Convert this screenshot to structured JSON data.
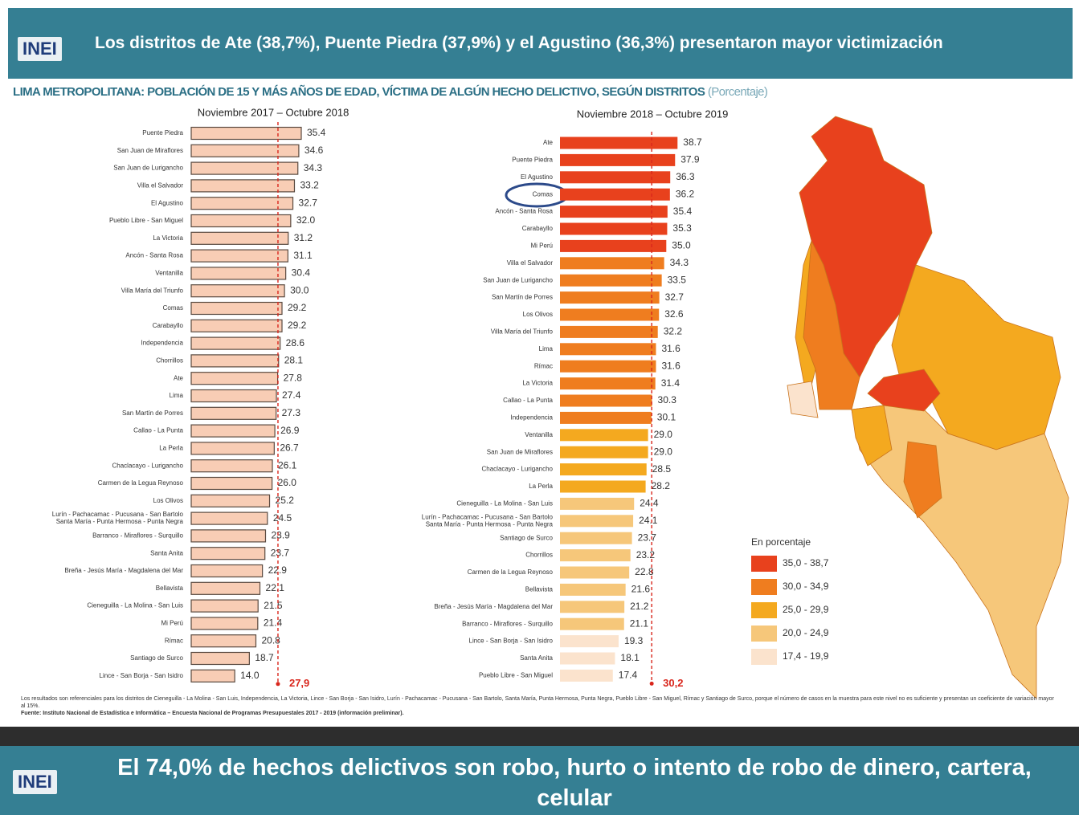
{
  "logo": "INEI",
  "header": {
    "title": "Los distritos de Ate (38,7%), Puente Piedra (37,9%) y el Agustino (36,3%) presentaron mayor victimización"
  },
  "subtitle": {
    "text": "LIMA METROPOLITANA: POBLACIÓN DE 15 Y MÁS AÑOS DE EDAD, VÍCTIMA DE ALGÚN HECHO DELICTIVO, SEGÚN DISTRITOS",
    "unit": "(Porcentaje)"
  },
  "chart_data": [
    {
      "type": "bar",
      "orientation": "horizontal",
      "title": "Noviembre 2017 – Octubre 2018",
      "categories": [
        "Puente Piedra",
        "San Juan de Miraflores",
        "San Juan de Lurigancho",
        "Villa el Salvador",
        "El Agustino",
        "Pueblo Libre - San Miguel",
        "La Victoria",
        "Ancón - Santa Rosa",
        "Ventanilla",
        "Villa María del Triunfo",
        "Comas",
        "Carabayllo",
        "Independencia",
        "Chorrillos",
        "Ate",
        "Lima",
        "San Martín de Porres",
        "Callao - La Punta",
        "La Perla",
        "Chaclacayo - Lurigancho",
        "Carmen de la Legua Reynoso",
        "Los Olivos",
        "Lurín - Pachacamac - Pucusana - San Bartolo\nSanta María - Punta Hermosa - Punta Negra",
        "Barranco - Miraflores - Surquillo",
        "Santa Anita",
        "Breña - Jesús María - Magdalena del Mar",
        "Bellavista",
        "Cieneguilla - La Molina - San Luis",
        "Mi Perú",
        "Rímac",
        "Santiago de Surco",
        "Lince - San Borja - San Isidro"
      ],
      "values": [
        35.4,
        34.6,
        34.3,
        33.2,
        32.7,
        32.0,
        31.2,
        31.1,
        30.4,
        30.0,
        29.2,
        29.2,
        28.6,
        28.1,
        27.8,
        27.4,
        27.3,
        26.9,
        26.7,
        26.1,
        26.0,
        25.2,
        24.5,
        23.9,
        23.7,
        22.9,
        22.1,
        21.5,
        21.4,
        20.8,
        18.7,
        14.0
      ],
      "value_labels": [
        "35.4",
        "34.6",
        "34.3",
        "33.2",
        "32.7",
        "32.0",
        "31.2",
        "31.1",
        "30.4",
        "30.0",
        "29.2",
        "29.2",
        "28.6",
        "28.1",
        "27.8",
        "27.4",
        "27.3",
        "26.9",
        "26.7",
        "26.1",
        "26.0",
        "25.2",
        "24.5",
        "23.9",
        "23.7",
        "22.9",
        "22.1",
        "21.5",
        "21.4",
        "20.8",
        "18.7",
        "14.0"
      ],
      "color": "#f8cdb5",
      "bar_outline": "#5a4a40",
      "average": {
        "value": 27.9,
        "label": "27,9"
      },
      "average_color": "#d9261c"
    },
    {
      "type": "bar",
      "orientation": "horizontal",
      "title": "Noviembre 2018 – Octubre 2019",
      "categories": [
        "Ate",
        "Puente Piedra",
        "El Agustino",
        "Comas",
        "Ancón - Santa Rosa",
        "Carabayllo",
        "Mi Perú",
        "Villa el Salvador",
        "San Juan de Lurigancho",
        "San Martín de Porres",
        "Los Olivos",
        "Villa María del Triunfo",
        "Lima",
        "Rímac",
        "La Victoria",
        "Callao - La Punta",
        "Independencia",
        "Ventanilla",
        "San Juan de Miraflores",
        "Chaclacayo - Lurigancho",
        "La Perla",
        "Cieneguilla - La Molina - San Luis",
        "Lurín - Pachacamac - Pucusana - San Bartolo\nSanta María - Punta Hermosa - Punta Negra",
        "Santiago de Surco",
        "Chorrillos",
        "Carmen de la Legua Reynoso",
        "Bellavista",
        "Breña - Jesús María - Magdalena del Mar",
        "Barranco - Miraflores - Surquillo",
        "Lince - San Borja - San Isidro",
        "Santa Anita",
        "Pueblo Libre - San Miguel"
      ],
      "values": [
        38.7,
        37.9,
        36.3,
        36.2,
        35.4,
        35.3,
        35.0,
        34.3,
        33.5,
        32.7,
        32.6,
        32.2,
        31.6,
        31.6,
        31.4,
        30.3,
        30.1,
        29.0,
        29.0,
        28.5,
        28.2,
        24.4,
        24.1,
        23.7,
        23.2,
        22.8,
        21.6,
        21.2,
        21.1,
        19.3,
        18.1,
        17.4
      ],
      "value_labels": [
        "38.7",
        "37.9",
        "36.3",
        "36.2",
        "35.4",
        "35.3",
        "35.0",
        "34.3",
        "33.5",
        "32.7",
        "32.6",
        "32.2",
        "31.6",
        "31.6",
        "31.4",
        "30.3",
        "30.1",
        "29.0",
        "29.0",
        "28.5",
        "28.2",
        "24.4",
        "24.1",
        "23.7",
        "23.2",
        "22.8",
        "21.6",
        "21.2",
        "21.1",
        "19.3",
        "18.1",
        "17.4"
      ],
      "colors": [
        "#e8411d",
        "#e8411d",
        "#e8411d",
        "#e8411d",
        "#e8411d",
        "#e8411d",
        "#e8411d",
        "#ef7d1f",
        "#ef7d1f",
        "#ef7d1f",
        "#ef7d1f",
        "#ef7d1f",
        "#ef7d1f",
        "#ef7d1f",
        "#ef7d1f",
        "#ef7d1f",
        "#ef7d1f",
        "#f4a91f",
        "#f4a91f",
        "#f4a91f",
        "#f4a91f",
        "#f6c77a",
        "#f6c77a",
        "#f6c77a",
        "#f6c77a",
        "#f6c77a",
        "#f6c77a",
        "#f6c77a",
        "#f6c77a",
        "#fbe3cd",
        "#fbe3cd",
        "#fbe3cd"
      ],
      "average": {
        "value": 30.2,
        "label": "30,2"
      },
      "average_color": "#d9261c"
    }
  ],
  "map_legend": {
    "title": "En porcentaje",
    "items": [
      {
        "label": "35,0 - 38,7",
        "color": "#e8411d"
      },
      {
        "label": "30,0 - 34,9",
        "color": "#ef7d1f"
      },
      {
        "label": "25,0 - 29,9",
        "color": "#f4a91f"
      },
      {
        "label": "20,0 - 24,9",
        "color": "#f6c77a"
      },
      {
        "label": "17,4 - 19,9",
        "color": "#fbe3cd"
      }
    ]
  },
  "footnote": {
    "note": "Los resultados son referenciales para los distritos de Cieneguilla - La Molina - San Luis, Independencia, La Victoria, Lince - San Borja - San Isidro, Lurín - Pachacamac - Pucusana - San Bartolo, Santa María, Punta Hermosa, Punta Negra, Pueblo Libre - San Miguel, Rímac y Santiago de Surco, porque el número de casos en la muestra para este nivel no es suficiente y presentan un coeficiente de variación mayor al 15%.",
    "source": "Fuente: Instituto Nacional de Estadística e Informática – Encuesta Nacional de Programas Presupuestales 2017 - 2019 (información preliminar)."
  },
  "next_header": {
    "title": "El 74,0% de hechos delictivos son robo, hurto o intento de robo de dinero, cartera, celular"
  }
}
